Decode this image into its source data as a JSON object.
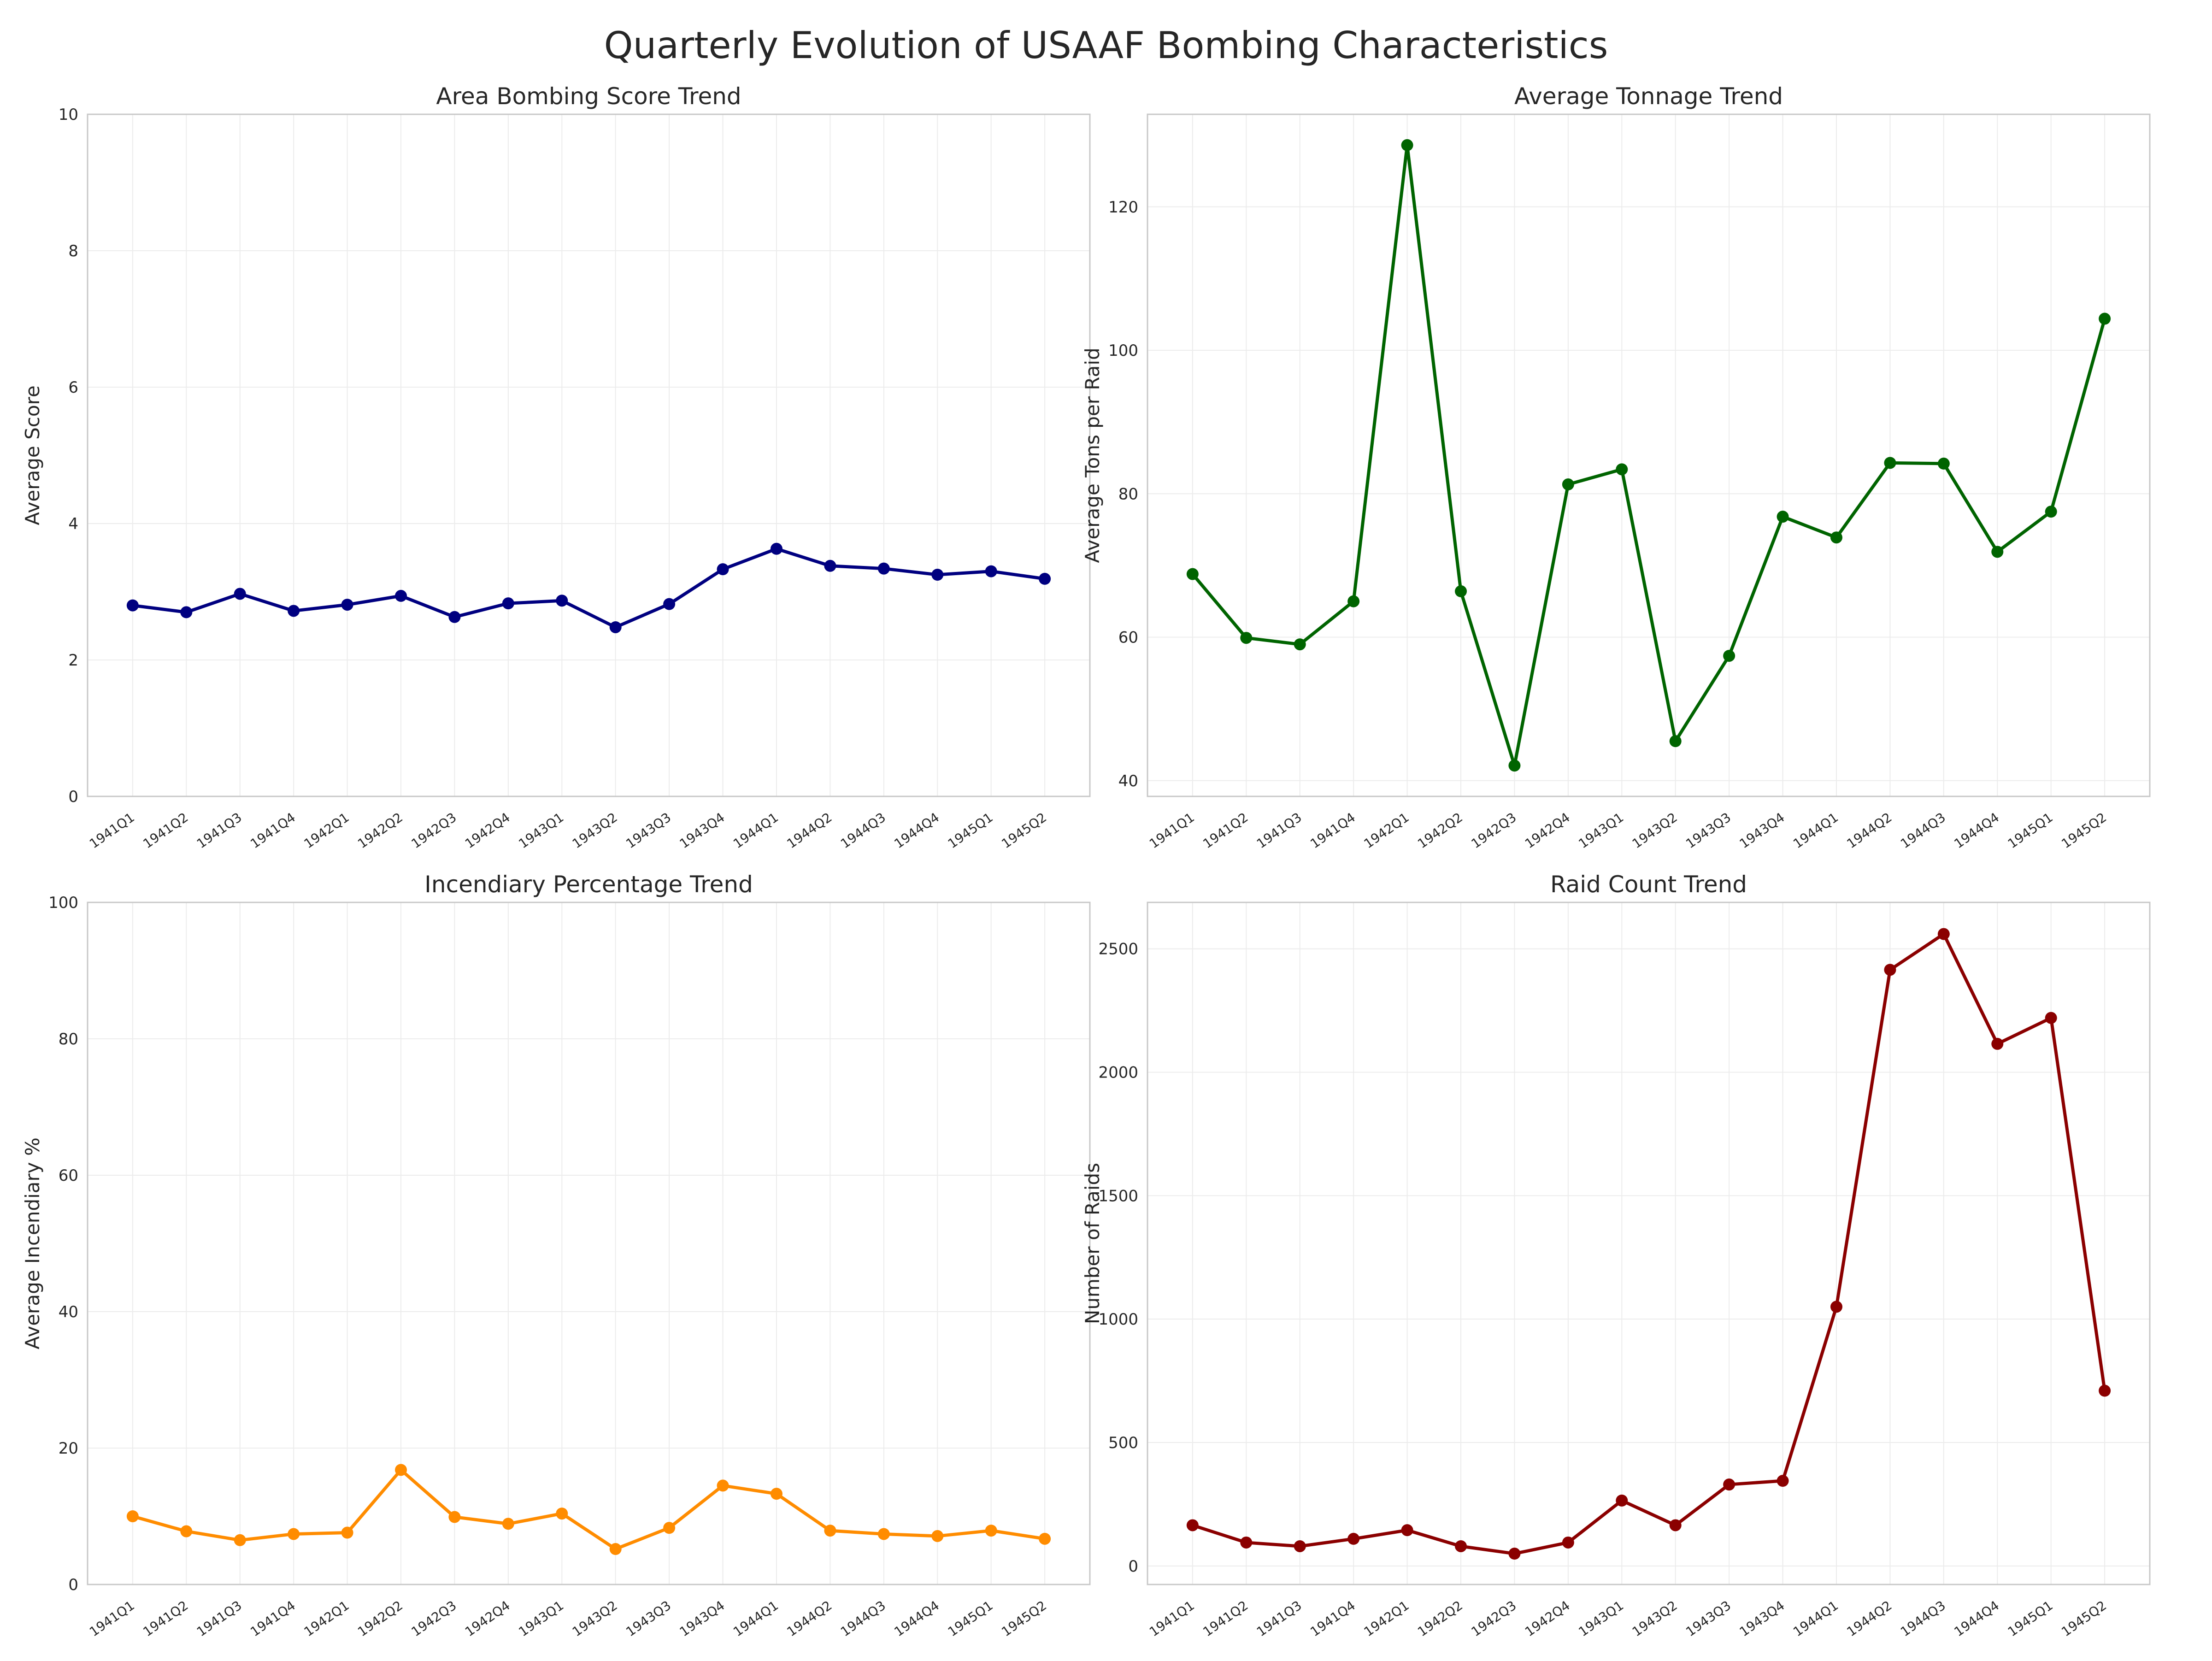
{
  "figure": {
    "title": "Quarterly Evolution of USAAF Bombing Characteristics"
  },
  "chart_data": [
    {
      "type": "line",
      "title": "Area Bombing Score Trend",
      "xlabel": "",
      "ylabel": "Average Score",
      "categories": [
        "1941Q1",
        "1941Q2",
        "1941Q3",
        "1941Q4",
        "1942Q1",
        "1942Q2",
        "1942Q3",
        "1942Q4",
        "1943Q1",
        "1943Q2",
        "1943Q3",
        "1943Q4",
        "1944Q1",
        "1944Q2",
        "1944Q3",
        "1944Q4",
        "1945Q1",
        "1945Q2"
      ],
      "values": [
        2.8,
        2.7,
        2.97,
        2.72,
        2.81,
        2.94,
        2.63,
        2.83,
        2.87,
        2.48,
        2.82,
        3.33,
        3.63,
        3.38,
        3.34,
        3.25,
        3.3,
        3.19
      ],
      "ylim": [
        0,
        10
      ],
      "yticks": [
        0,
        2,
        4,
        6,
        8,
        10
      ],
      "color": "#000080",
      "grid": true
    },
    {
      "type": "line",
      "title": "Average Tonnage Trend",
      "xlabel": "",
      "ylabel": "Average Tons per Raid",
      "categories": [
        "1941Q1",
        "1941Q2",
        "1941Q3",
        "1941Q4",
        "1942Q1",
        "1942Q2",
        "1942Q3",
        "1942Q4",
        "1943Q1",
        "1943Q2",
        "1943Q3",
        "1943Q4",
        "1944Q1",
        "1944Q2",
        "1944Q3",
        "1944Q4",
        "1945Q1",
        "1945Q2"
      ],
      "values": [
        68.8,
        59.9,
        59.0,
        65.0,
        128.6,
        66.4,
        42.1,
        81.3,
        83.4,
        45.5,
        57.4,
        76.8,
        73.9,
        84.3,
        84.2,
        71.9,
        77.5,
        104.4
      ],
      "ylim": [
        37.8,
        132.9
      ],
      "yticks": [
        40,
        60,
        80,
        100,
        120
      ],
      "color": "#006400",
      "grid": true
    },
    {
      "type": "line",
      "title": "Incendiary Percentage Trend",
      "xlabel": "",
      "ylabel": "Average Incendiary %",
      "categories": [
        "1941Q1",
        "1941Q2",
        "1941Q3",
        "1941Q4",
        "1942Q1",
        "1942Q2",
        "1942Q3",
        "1942Q4",
        "1943Q1",
        "1943Q2",
        "1943Q3",
        "1943Q4",
        "1944Q1",
        "1944Q2",
        "1944Q3",
        "1944Q4",
        "1945Q1",
        "1945Q2"
      ],
      "values": [
        10.0,
        7.8,
        6.5,
        7.4,
        7.6,
        16.8,
        9.9,
        8.9,
        10.4,
        5.2,
        8.3,
        14.5,
        13.3,
        7.9,
        7.4,
        7.1,
        7.9,
        6.7
      ],
      "ylim": [
        0,
        100
      ],
      "yticks": [
        0,
        20,
        40,
        60,
        80,
        100
      ],
      "color": "#ff8c00",
      "grid": true
    },
    {
      "type": "line",
      "title": "Raid Count Trend",
      "xlabel": "",
      "ylabel": "Number of Raids",
      "categories": [
        "1941Q1",
        "1941Q2",
        "1941Q3",
        "1941Q4",
        "1942Q1",
        "1942Q2",
        "1942Q3",
        "1942Q4",
        "1943Q1",
        "1943Q2",
        "1943Q3",
        "1943Q4",
        "1944Q1",
        "1944Q2",
        "1944Q3",
        "1944Q4",
        "1945Q1",
        "1945Q2"
      ],
      "values": [
        165,
        95,
        80,
        110,
        145,
        80,
        50,
        95,
        265,
        165,
        330,
        345,
        1050,
        2415,
        2560,
        2115,
        2220,
        710
      ],
      "ylim": [
        -75,
        2688
      ],
      "yticks": [
        0,
        500,
        1000,
        1500,
        2000,
        2500
      ],
      "color": "#8b0000",
      "grid": true
    }
  ]
}
